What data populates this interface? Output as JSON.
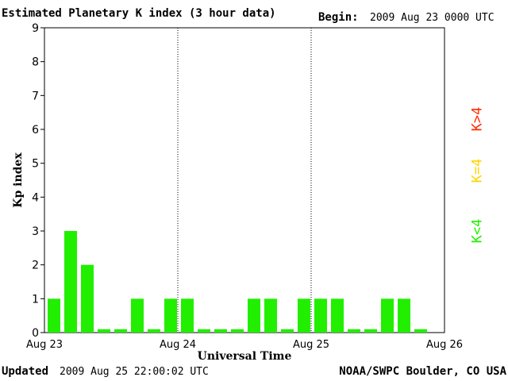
{
  "header": {
    "title": "Estimated Planetary K index (3 hour data)",
    "begin_label": "Begin:",
    "begin_value": "2009 Aug 23 0000 UTC"
  },
  "footer": {
    "updated_label": "Updated",
    "updated_value": "2009 Aug 25 22:00:02 UTC",
    "credit": "NOAA/SWPC Boulder, CO USA"
  },
  "legend": [
    {
      "label": "K>4",
      "color": "#ff2a00"
    },
    {
      "label": "K=4",
      "color": "#ffd400"
    },
    {
      "label": "K<4",
      "color": "#22ee00"
    }
  ],
  "chart_data": {
    "type": "bar",
    "title": "Estimated Planetary K index (3 hour data)",
    "xlabel": "Universal Time",
    "ylabel": "Kp index",
    "ylim": [
      0,
      9
    ],
    "yticks": [
      0,
      1,
      2,
      3,
      4,
      5,
      6,
      7,
      8,
      9
    ],
    "xticks": [
      "Aug 23",
      "Aug 24",
      "Aug 25",
      "Aug 26"
    ],
    "day_separators": [
      "Aug 24",
      "Aug 25"
    ],
    "bar_color": "#22ee00",
    "interval_hours": 3,
    "values": [
      1,
      3,
      2,
      0.1,
      0.1,
      1,
      0.1,
      1,
      1,
      0.1,
      0.1,
      0.1,
      1,
      1,
      0.1,
      1,
      1,
      1,
      0.1,
      0.1,
      1,
      1,
      0.1
    ]
  }
}
